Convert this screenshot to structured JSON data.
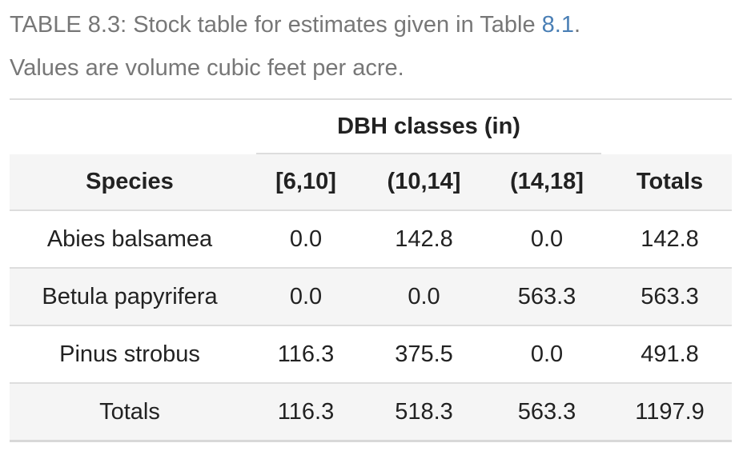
{
  "caption": {
    "prefix": "TABLE 8.3: Stock table for estimates given in Table ",
    "ref": "8.1",
    "suffix": ".",
    "line2": "Values are volume cubic feet per acre."
  },
  "table": {
    "spanner": "DBH classes (in)",
    "headers": [
      "Species",
      "[6,10]",
      "(10,14]",
      "(14,18]",
      "Totals"
    ],
    "rows": [
      [
        "Abies balsamea",
        "0.0",
        "142.8",
        "0.0",
        "142.8"
      ],
      [
        "Betula papyrifera",
        "0.0",
        "0.0",
        "563.3",
        "563.3"
      ],
      [
        "Pinus strobus",
        "116.3",
        "375.5",
        "0.0",
        "491.8"
      ],
      [
        "Totals",
        "116.3",
        "518.3",
        "563.3",
        "1197.9"
      ]
    ]
  }
}
